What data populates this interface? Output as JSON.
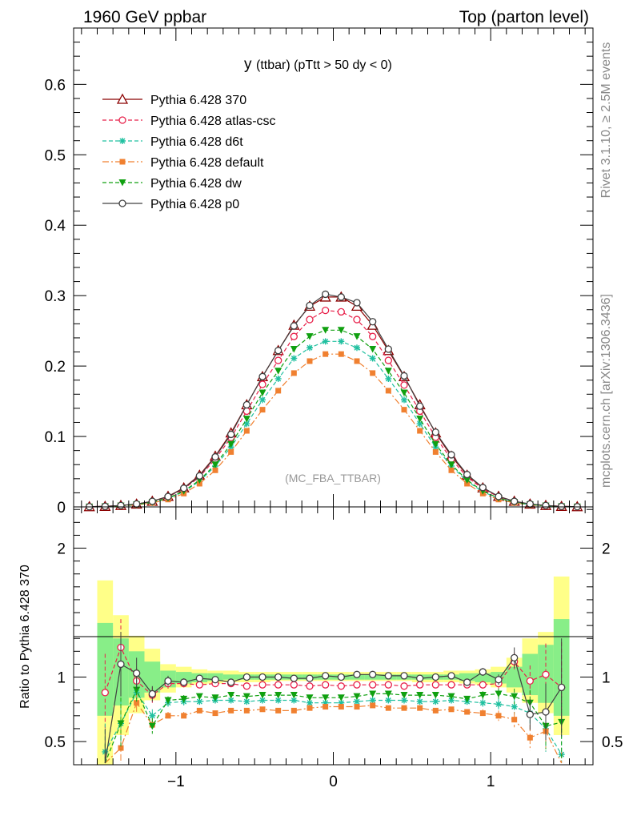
{
  "header": {
    "left": "1960 GeV ppbar",
    "right": "Top (parton level)"
  },
  "side_labels": {
    "rivet": "Rivet 3.1.10, ≥ 2.5M events",
    "mcplots": "mcplots.cern.ch [arXiv:1306.3436]"
  },
  "chart_data": [
    {
      "type": "line",
      "title_main": "y",
      "title_rest": "(ttbar) (pTtt > 50 dy < 0)",
      "watermark": "(MC_FBA_TTBAR)",
      "xlim": [
        -1.65,
        1.65
      ],
      "ylim": [
        0,
        0.68
      ],
      "yticks": [
        0,
        0.1,
        0.2,
        0.3,
        0.4,
        0.5,
        0.6
      ],
      "ytick_labels": [
        "0",
        "0.1",
        "0.2",
        "0.3",
        "0.4",
        "0.5",
        "0.6"
      ],
      "x": [
        -1.55,
        -1.45,
        -1.35,
        -1.25,
        -1.15,
        -1.05,
        -0.95,
        -0.85,
        -0.75,
        -0.65,
        -0.55,
        -0.45,
        -0.35,
        -0.25,
        -0.15,
        -0.05,
        0.05,
        0.15,
        0.25,
        0.35,
        0.45,
        0.55,
        0.65,
        0.75,
        0.85,
        0.95,
        1.05,
        1.15,
        1.25,
        1.35,
        1.45,
        1.55
      ],
      "series": [
        {
          "name": "Pythia 6.428 370",
          "color": "#8b0000",
          "marker": "triangle-open",
          "dash": "solid",
          "values": [
            0.0003,
            0.0008,
            0.002,
            0.004,
            0.008,
            0.015,
            0.027,
            0.045,
            0.072,
            0.105,
            0.145,
            0.185,
            0.222,
            0.258,
            0.285,
            0.298,
            0.298,
            0.285,
            0.258,
            0.222,
            0.185,
            0.145,
            0.105,
            0.072,
            0.045,
            0.027,
            0.015,
            0.008,
            0.004,
            0.002,
            0.0008,
            0.0003
          ]
        },
        {
          "name": "Pythia 6.428 atlas-csc",
          "color": "#e8224b",
          "marker": "circle-open",
          "dash": "dashed",
          "values": [
            0.0003,
            0.0008,
            0.0019,
            0.0038,
            0.0076,
            0.0143,
            0.0255,
            0.0425,
            0.068,
            0.0985,
            0.136,
            0.174,
            0.208,
            0.242,
            0.266,
            0.279,
            0.277,
            0.266,
            0.242,
            0.208,
            0.173,
            0.136,
            0.099,
            0.068,
            0.0425,
            0.0255,
            0.0143,
            0.0076,
            0.0038,
            0.0019,
            0.0008,
            0.0003
          ]
        },
        {
          "name": "Pythia 6.428 d6t",
          "color": "#20c0a0",
          "marker": "star",
          "dash": "dashed",
          "values": [
            0.0002,
            0.0006,
            0.0015,
            0.0031,
            0.0064,
            0.012,
            0.0215,
            0.0365,
            0.058,
            0.085,
            0.118,
            0.152,
            0.182,
            0.211,
            0.226,
            0.235,
            0.235,
            0.226,
            0.211,
            0.182,
            0.152,
            0.118,
            0.085,
            0.058,
            0.0365,
            0.0215,
            0.012,
            0.0064,
            0.0031,
            0.0015,
            0.0006,
            0.0002
          ]
        },
        {
          "name": "Pythia 6.428 default",
          "color": "#f08030",
          "marker": "square",
          "dash": "dashdot",
          "values": [
            0.0002,
            0.0005,
            0.0014,
            0.0029,
            0.0057,
            0.0105,
            0.019,
            0.033,
            0.052,
            0.078,
            0.108,
            0.138,
            0.165,
            0.19,
            0.207,
            0.217,
            0.217,
            0.207,
            0.19,
            0.165,
            0.138,
            0.108,
            0.078,
            0.052,
            0.033,
            0.019,
            0.0105,
            0.0057,
            0.0029,
            0.0014,
            0.0005,
            0.0002
          ]
        },
        {
          "name": "Pythia 6.428 dw",
          "color": "#10a010",
          "marker": "triangle-down",
          "dash": "dashed",
          "values": [
            0.0002,
            0.0006,
            0.0016,
            0.0033,
            0.0066,
            0.0125,
            0.0225,
            0.038,
            0.06,
            0.089,
            0.125,
            0.162,
            0.193,
            0.224,
            0.242,
            0.251,
            0.251,
            0.242,
            0.224,
            0.193,
            0.162,
            0.125,
            0.089,
            0.06,
            0.038,
            0.0225,
            0.0125,
            0.0066,
            0.0033,
            0.0016,
            0.0006,
            0.0002
          ]
        },
        {
          "name": "Pythia 6.428 p0",
          "color": "#404040",
          "marker": "circle-open",
          "dash": "solid",
          "values": [
            0.0003,
            0.0008,
            0.002,
            0.0041,
            0.0079,
            0.0147,
            0.0265,
            0.044,
            0.071,
            0.103,
            0.145,
            0.185,
            0.222,
            0.257,
            0.286,
            0.302,
            0.298,
            0.29,
            0.263,
            0.224,
            0.186,
            0.143,
            0.106,
            0.074,
            0.046,
            0.0275,
            0.0148,
            0.0079,
            0.0042,
            0.002,
            0.0008,
            0.0003
          ]
        }
      ]
    },
    {
      "type": "line",
      "ylabel": "Ratio to Pythia 6.428 370",
      "reference": 1,
      "xlim": [
        -1.65,
        1.65
      ],
      "ylim": [
        0.32,
        2.32
      ],
      "yticks": [
        0.5,
        1,
        2
      ],
      "ytick_labels": [
        "0.5",
        "1",
        "2"
      ],
      "xticks": [
        -1,
        0,
        1
      ],
      "xtick_labels": [
        "−1",
        "0",
        "1"
      ],
      "band_x_edges": [
        -1.5,
        -1.4,
        -1.3,
        -1.2,
        -1.1,
        -1.0,
        -0.9,
        -0.8,
        -0.7,
        -0.6,
        -0.5,
        -0.4,
        -0.3,
        -0.2,
        -0.1,
        0.0,
        0.1,
        0.2,
        0.3,
        0.4,
        0.5,
        0.6,
        0.7,
        0.8,
        0.9,
        1.0,
        1.1,
        1.2,
        1.3,
        1.4,
        1.5
      ],
      "band_yellow": [
        [
          0.3,
          1.75
        ],
        [
          0.55,
          1.48
        ],
        [
          0.72,
          1.32
        ],
        [
          0.82,
          1.22
        ],
        [
          0.88,
          1.1
        ],
        [
          0.92,
          1.08
        ],
        [
          0.94,
          1.06
        ],
        [
          0.95,
          1.05
        ],
        [
          0.96,
          1.05
        ],
        [
          0.96,
          1.04
        ],
        [
          0.96,
          1.04
        ],
        [
          0.97,
          1.04
        ],
        [
          0.97,
          1.04
        ],
        [
          0.97,
          1.04
        ],
        [
          0.97,
          1.04
        ],
        [
          0.97,
          1.04
        ],
        [
          0.97,
          1.04
        ],
        [
          0.97,
          1.04
        ],
        [
          0.97,
          1.04
        ],
        [
          0.97,
          1.04
        ],
        [
          0.96,
          1.04
        ],
        [
          0.96,
          1.04
        ],
        [
          0.96,
          1.05
        ],
        [
          0.95,
          1.05
        ],
        [
          0.94,
          1.06
        ],
        [
          0.92,
          1.08
        ],
        [
          0.88,
          1.15
        ],
        [
          0.8,
          1.3
        ],
        [
          0.72,
          1.35
        ],
        [
          0.55,
          1.78
        ]
      ],
      "band_green": [
        [
          0.7,
          1.42
        ],
        [
          0.78,
          1.3
        ],
        [
          0.84,
          1.2
        ],
        [
          0.88,
          1.12
        ],
        [
          0.92,
          1.05
        ],
        [
          0.95,
          1.04
        ],
        [
          0.96,
          1.03
        ],
        [
          0.97,
          1.03
        ],
        [
          0.98,
          1.02
        ],
        [
          0.98,
          1.02
        ],
        [
          0.98,
          1.02
        ],
        [
          0.98,
          1.02
        ],
        [
          0.98,
          1.02
        ],
        [
          0.98,
          1.02
        ],
        [
          0.98,
          1.02
        ],
        [
          0.98,
          1.02
        ],
        [
          0.98,
          1.02
        ],
        [
          0.98,
          1.02
        ],
        [
          0.98,
          1.02
        ],
        [
          0.98,
          1.02
        ],
        [
          0.98,
          1.02
        ],
        [
          0.98,
          1.02
        ],
        [
          0.98,
          1.02
        ],
        [
          0.97,
          1.03
        ],
        [
          0.96,
          1.03
        ],
        [
          0.95,
          1.04
        ],
        [
          0.92,
          1.08
        ],
        [
          0.86,
          1.18
        ],
        [
          0.8,
          1.25
        ],
        [
          0.7,
          1.45
        ]
      ],
      "ratio_x": [
        -1.45,
        -1.35,
        -1.25,
        -1.15,
        -1.05,
        -0.95,
        -0.85,
        -0.75,
        -0.65,
        -0.55,
        -0.45,
        -0.35,
        -0.25,
        -0.15,
        -0.05,
        0.05,
        0.15,
        0.25,
        0.35,
        0.45,
        0.55,
        0.65,
        0.75,
        0.85,
        0.95,
        1.05,
        1.15,
        1.25,
        1.35,
        1.45
      ],
      "series": [
        {
          "name": "Pythia 6.428 atlas-csc",
          "color": "#e8224b",
          "marker": "circle-open",
          "dash": "dashed",
          "values": [
            0.88,
            1.23,
            0.97,
            0.86,
            0.95,
            0.95,
            0.94,
            0.95,
            0.95,
            0.93,
            0.94,
            0.94,
            0.94,
            0.93,
            0.94,
            0.93,
            0.94,
            0.94,
            0.94,
            0.93,
            0.94,
            0.94,
            0.94,
            0.94,
            0.94,
            0.95,
            1.12,
            0.97,
            1.02,
            0.92
          ],
          "err": [
            0.3,
            0.22,
            0.1,
            0.06,
            0.04,
            0.03,
            0.02,
            0.02,
            0.02,
            0.01,
            0.01,
            0.01,
            0.01,
            0.01,
            0.01,
            0.01,
            0.01,
            0.01,
            0.01,
            0.01,
            0.02,
            0.02,
            0.02,
            0.02,
            0.03,
            0.04,
            0.07,
            0.12,
            0.24,
            0.35
          ]
        },
        {
          "name": "Pythia 6.428 d6t",
          "color": "#20c0a0",
          "marker": "star",
          "dash": "dashed",
          "values": [
            0.42,
            0.64,
            0.88,
            0.7,
            0.8,
            0.81,
            0.81,
            0.82,
            0.82,
            0.81,
            0.82,
            0.82,
            0.82,
            0.8,
            0.8,
            0.8,
            0.81,
            0.82,
            0.82,
            0.82,
            0.81,
            0.81,
            0.82,
            0.81,
            0.8,
            0.79,
            0.77,
            0.72,
            0.6,
            0.4
          ],
          "err": [
            0.22,
            0.18,
            0.08,
            0.05,
            0.03,
            0.03,
            0.02,
            0.02,
            0.02,
            0.01,
            0.01,
            0.01,
            0.01,
            0.01,
            0.01,
            0.01,
            0.01,
            0.01,
            0.01,
            0.01,
            0.02,
            0.02,
            0.02,
            0.02,
            0.03,
            0.04,
            0.06,
            0.1,
            0.18,
            0.25
          ]
        },
        {
          "name": "Pythia 6.428 default",
          "color": "#f08030",
          "marker": "square",
          "dash": "dashdot",
          "values": [
            0.22,
            0.45,
            0.8,
            0.63,
            0.7,
            0.7,
            0.74,
            0.72,
            0.74,
            0.74,
            0.75,
            0.74,
            0.74,
            0.76,
            0.77,
            0.77,
            0.77,
            0.78,
            0.76,
            0.76,
            0.76,
            0.74,
            0.75,
            0.73,
            0.72,
            0.7,
            0.67,
            0.53,
            0.58,
            0.2
          ],
          "err": [
            0.2,
            0.15,
            0.08,
            0.05,
            0.03,
            0.03,
            0.02,
            0.02,
            0.02,
            0.01,
            0.01,
            0.01,
            0.01,
            0.01,
            0.01,
            0.01,
            0.01,
            0.01,
            0.01,
            0.01,
            0.02,
            0.02,
            0.02,
            0.02,
            0.03,
            0.04,
            0.06,
            0.1,
            0.15,
            0.22
          ]
        },
        {
          "name": "Pythia 6.428 dw",
          "color": "#10a010",
          "marker": "triangle-down",
          "dash": "dashed",
          "values": [
            0.26,
            0.64,
            0.9,
            0.62,
            0.82,
            0.83,
            0.85,
            0.84,
            0.86,
            0.85,
            0.86,
            0.86,
            0.86,
            0.84,
            0.84,
            0.84,
            0.85,
            0.87,
            0.87,
            0.86,
            0.86,
            0.86,
            0.85,
            0.83,
            0.86,
            0.87,
            0.85,
            0.8,
            0.62,
            0.65
          ],
          "err": [
            0.22,
            0.2,
            0.09,
            0.06,
            0.03,
            0.03,
            0.02,
            0.02,
            0.02,
            0.01,
            0.01,
            0.01,
            0.01,
            0.01,
            0.01,
            0.01,
            0.01,
            0.01,
            0.01,
            0.01,
            0.02,
            0.02,
            0.02,
            0.02,
            0.03,
            0.04,
            0.06,
            0.1,
            0.18,
            0.3
          ]
        },
        {
          "name": "Pythia 6.428 p0",
          "color": "#404040",
          "marker": "circle-open",
          "dash": "solid",
          "values": [
            0.3,
            1.1,
            1.03,
            0.87,
            0.97,
            0.96,
            0.99,
            0.98,
            0.96,
            1.0,
            1.0,
            1.0,
            0.99,
            0.99,
            1.01,
            1.0,
            1.02,
            1.02,
            1.01,
            1.01,
            0.99,
            1.0,
            1.01,
            0.96,
            1.04,
            0.98,
            1.15,
            0.71,
            0.73,
            0.92
          ],
          "err": [
            0.3,
            0.25,
            0.12,
            0.06,
            0.04,
            0.03,
            0.02,
            0.02,
            0.02,
            0.01,
            0.01,
            0.01,
            0.01,
            0.01,
            0.01,
            0.01,
            0.01,
            0.01,
            0.01,
            0.01,
            0.02,
            0.02,
            0.02,
            0.02,
            0.03,
            0.04,
            0.08,
            0.12,
            0.22,
            0.38
          ]
        }
      ]
    }
  ]
}
